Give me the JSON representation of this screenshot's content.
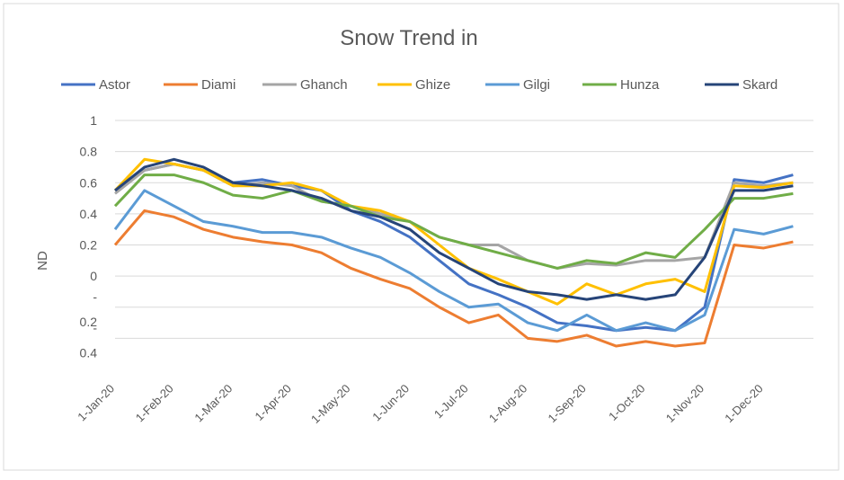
{
  "chart_data": {
    "type": "line",
    "title": "Snow Trend in",
    "y_label": "ND",
    "categories": [
      "1-Jan-20",
      null,
      "1-Feb-20",
      null,
      "1-Mar-20",
      null,
      "1-Apr-20",
      null,
      "1-May-20",
      null,
      "1-Jun-20",
      null,
      "1-Jul-20",
      null,
      "1-Aug-20",
      null,
      "1-Sep-20",
      null,
      "1-Oct-20",
      null,
      "1-Nov-20",
      null,
      "1-Dec-20",
      null
    ],
    "series": [
      {
        "name": "Astor",
        "color": "#4472c4",
        "values": [
          0.55,
          0.68,
          0.72,
          0.68,
          0.6,
          0.62,
          0.58,
          0.55,
          0.42,
          0.35,
          0.25,
          0.1,
          -0.05,
          -0.12,
          -0.2,
          -0.3,
          -0.32,
          -0.35,
          -0.33,
          -0.35,
          -0.2,
          0.62,
          0.6,
          0.65
        ]
      },
      {
        "name": "Diami",
        "color": "#ed7d31",
        "values": [
          0.2,
          0.42,
          0.38,
          0.3,
          0.25,
          0.22,
          0.2,
          0.15,
          0.05,
          -0.02,
          -0.08,
          -0.2,
          -0.3,
          -0.25,
          -0.4,
          -0.42,
          -0.38,
          -0.45,
          -0.42,
          -0.45,
          -0.43,
          0.2,
          0.18,
          0.22
        ]
      },
      {
        "name": "Ghanch",
        "color": "#a5a5a5",
        "values": [
          0.53,
          0.68,
          0.72,
          0.68,
          0.58,
          0.6,
          0.58,
          0.48,
          0.45,
          0.4,
          0.35,
          0.25,
          0.2,
          0.2,
          0.1,
          0.05,
          0.08,
          0.07,
          0.1,
          0.1,
          0.12,
          0.6,
          0.58,
          0.6
        ]
      },
      {
        "name": "Ghize",
        "color": "#ffc000",
        "values": [
          0.55,
          0.75,
          0.72,
          0.68,
          0.58,
          0.58,
          0.6,
          0.55,
          0.45,
          0.42,
          0.35,
          0.2,
          0.05,
          -0.02,
          -0.1,
          -0.18,
          -0.05,
          -0.12,
          -0.05,
          -0.02,
          -0.1,
          0.58,
          0.57,
          0.6
        ]
      },
      {
        "name": "Gilgi",
        "color": "#5b9bd5",
        "values": [
          0.3,
          0.55,
          0.45,
          0.35,
          0.32,
          0.28,
          0.28,
          0.25,
          0.18,
          0.12,
          0.02,
          -0.1,
          -0.2,
          -0.18,
          -0.3,
          -0.35,
          -0.25,
          -0.35,
          -0.3,
          -0.35,
          -0.25,
          0.3,
          0.27,
          0.32
        ]
      },
      {
        "name": "Hunza",
        "color": "#70ad47",
        "values": [
          0.45,
          0.65,
          0.65,
          0.6,
          0.52,
          0.5,
          0.55,
          0.48,
          0.45,
          0.38,
          0.35,
          0.25,
          0.2,
          0.15,
          0.1,
          0.05,
          0.1,
          0.08,
          0.15,
          0.12,
          0.3,
          0.5,
          0.5,
          0.53
        ]
      },
      {
        "name": "Skard",
        "color": "#264478",
        "values": [
          0.55,
          0.7,
          0.75,
          0.7,
          0.6,
          0.58,
          0.55,
          0.5,
          0.42,
          0.38,
          0.3,
          0.15,
          0.05,
          -0.05,
          -0.1,
          -0.12,
          -0.15,
          -0.12,
          -0.15,
          -0.12,
          0.12,
          0.55,
          0.55,
          0.58
        ]
      }
    ],
    "ylim": [
      -0.6,
      1
    ],
    "yticks": [
      1,
      0.8,
      0.6,
      0.4,
      0.2,
      0,
      {
        "value": -0.2,
        "label": "-0.2"
      },
      {
        "value": -0.4,
        "label": "-0.4"
      }
    ],
    "grid": true,
    "legend": "top"
  }
}
